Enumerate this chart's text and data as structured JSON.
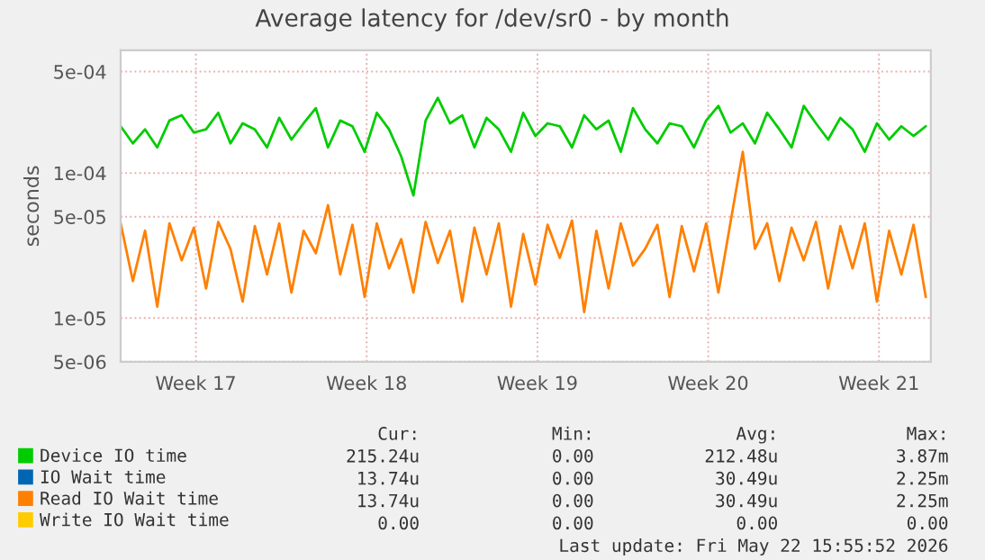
{
  "chart_data": {
    "type": "line",
    "title": "Average latency for /dev/sr0 - by month",
    "ylabel": "seconds",
    "x": [
      "2026-04-19T12:00",
      "2026-04-20T00:00",
      "2026-04-20T12:00",
      "2026-04-21T00:00",
      "2026-04-21T12:00",
      "2026-04-22T00:00",
      "2026-04-22T12:00",
      "2026-04-23T00:00",
      "2026-04-23T12:00",
      "2026-04-24T00:00",
      "2026-04-24T12:00",
      "2026-04-25T00:00",
      "2026-04-25T12:00",
      "2026-04-26T00:00",
      "2026-04-26T12:00",
      "2026-04-27T00:00",
      "2026-04-27T12:00",
      "2026-04-28T00:00",
      "2026-04-28T12:00",
      "2026-04-29T00:00",
      "2026-04-29T12:00",
      "2026-04-30T00:00",
      "2026-04-30T12:00",
      "2026-05-01T00:00",
      "2026-05-01T12:00",
      "2026-05-02T00:00",
      "2026-05-02T12:00",
      "2026-05-03T00:00",
      "2026-05-03T12:00",
      "2026-05-04T00:00",
      "2026-05-04T12:00",
      "2026-05-05T00:00",
      "2026-05-05T12:00",
      "2026-05-06T00:00",
      "2026-05-06T12:00",
      "2026-05-07T00:00",
      "2026-05-07T12:00",
      "2026-05-08T00:00",
      "2026-05-08T12:00",
      "2026-05-09T00:00",
      "2026-05-09T12:00",
      "2026-05-10T00:00",
      "2026-05-10T12:00",
      "2026-05-11T00:00",
      "2026-05-11T12:00",
      "2026-05-12T00:00",
      "2026-05-12T12:00",
      "2026-05-13T00:00",
      "2026-05-13T12:00",
      "2026-05-14T00:00",
      "2026-05-14T12:00",
      "2026-05-15T00:00",
      "2026-05-15T12:00",
      "2026-05-16T00:00",
      "2026-05-16T12:00",
      "2026-05-17T00:00",
      "2026-05-17T12:00",
      "2026-05-18T00:00",
      "2026-05-18T12:00",
      "2026-05-19T00:00",
      "2026-05-19T12:00",
      "2026-05-20T00:00",
      "2026-05-20T12:00",
      "2026-05-21T00:00",
      "2026-05-21T12:00",
      "2026-05-22T00:00",
      "2026-05-22T12:00"
    ],
    "series": [
      {
        "name": "Device IO time",
        "color": "#00cc00",
        "values": [
          0.00021,
          0.00016,
          0.0002,
          0.00015,
          0.00023,
          0.00025,
          0.00019,
          0.0002,
          0.00026,
          0.00016,
          0.00022,
          0.0002,
          0.00015,
          0.00024,
          0.00017,
          0.00022,
          0.00028,
          0.00015,
          0.00023,
          0.00021,
          0.00014,
          0.00026,
          0.0002,
          0.00013,
          7e-05,
          0.00023,
          0.00033,
          0.00022,
          0.00025,
          0.00015,
          0.00024,
          0.0002,
          0.00014,
          0.00026,
          0.00018,
          0.00022,
          0.00021,
          0.00015,
          0.00025,
          0.0002,
          0.00023,
          0.00014,
          0.00028,
          0.0002,
          0.00016,
          0.00022,
          0.00021,
          0.00015,
          0.00023,
          0.00029,
          0.00019,
          0.00022,
          0.00016,
          0.00026,
          0.0002,
          0.00015,
          0.00029,
          0.00022,
          0.00017,
          0.00024,
          0.0002,
          0.00014,
          0.00022,
          0.00017,
          0.00021,
          0.00018,
          0.00021
        ]
      },
      {
        "name": "IO Wait time",
        "color": "#0066b3",
        "values": [
          null,
          null,
          null,
          null,
          null,
          null,
          null,
          null,
          null,
          null,
          null,
          null,
          null,
          null,
          null,
          null,
          null,
          null,
          null,
          null,
          null,
          null,
          null,
          null,
          null,
          null,
          null,
          null,
          null,
          null,
          null,
          null,
          null,
          null,
          null,
          null,
          null,
          null,
          null,
          null,
          null,
          null,
          null,
          null,
          null,
          null,
          null,
          null,
          null,
          null,
          null,
          null,
          null,
          null,
          null,
          null,
          null,
          null,
          null,
          null,
          null,
          null,
          null,
          null,
          null,
          null,
          null
        ]
      },
      {
        "name": "Read IO Wait time",
        "color": "#ff8000",
        "values": [
          4.5e-05,
          1.8e-05,
          4e-05,
          1.2e-05,
          4.5e-05,
          2.5e-05,
          4.2e-05,
          1.6e-05,
          4.6e-05,
          3e-05,
          1.3e-05,
          4.3e-05,
          2e-05,
          4.5e-05,
          1.5e-05,
          4e-05,
          2.8e-05,
          6e-05,
          2e-05,
          4.4e-05,
          1.4e-05,
          4.5e-05,
          2.2e-05,
          3.5e-05,
          1.5e-05,
          4.6e-05,
          2.4e-05,
          4e-05,
          1.3e-05,
          4.2e-05,
          2e-05,
          4.5e-05,
          1.2e-05,
          3.8e-05,
          1.7e-05,
          4.4e-05,
          2.6e-05,
          4.7e-05,
          1.1e-05,
          4e-05,
          1.6e-05,
          4.5e-05,
          2.3e-05,
          3e-05,
          4.4e-05,
          1.4e-05,
          4.3e-05,
          2.1e-05,
          4.5e-05,
          1.5e-05,
          4.6e-05,
          0.00014,
          3e-05,
          4.5e-05,
          1.8e-05,
          4.2e-05,
          2.5e-05,
          4.6e-05,
          1.6e-05,
          4.3e-05,
          2.2e-05,
          4.5e-05,
          1.3e-05,
          4e-05,
          2e-05,
          4.4e-05,
          1.4e-05
        ]
      },
      {
        "name": "Write IO Wait time",
        "color": "#ffcc00",
        "values": [
          null,
          null,
          null,
          null,
          null,
          null,
          null,
          null,
          null,
          null,
          null,
          null,
          null,
          null,
          null,
          null,
          null,
          null,
          null,
          null,
          null,
          null,
          null,
          null,
          null,
          null,
          null,
          null,
          null,
          null,
          null,
          null,
          null,
          null,
          null,
          null,
          null,
          null,
          null,
          null,
          null,
          null,
          null,
          null,
          null,
          null,
          null,
          null,
          null,
          null,
          null,
          null,
          null,
          null,
          null,
          null,
          null,
          null,
          null,
          null,
          null,
          null,
          null,
          null,
          null,
          null,
          null
        ]
      }
    ],
    "log": true,
    "xlim": [
      "2026-04-19T12:00",
      "2026-05-22T17:00"
    ],
    "ylim": [
      5e-06,
      0.0007
    ],
    "xticks": [
      {
        "value": "2026-04-22T14:00",
        "label": "Week 17"
      },
      {
        "value": "2026-04-29T14:00",
        "label": "Week 18"
      },
      {
        "value": "2026-05-06T14:00",
        "label": "Week 19"
      },
      {
        "value": "2026-05-13T14:00",
        "label": "Week 20"
      },
      {
        "value": "2026-05-20T14:00",
        "label": "Week 21"
      }
    ],
    "yticks": [
      {
        "value": 5e-06,
        "label": "5e-06"
      },
      {
        "value": 1e-05,
        "label": "1e-05"
      },
      {
        "value": 5e-05,
        "label": "5e-05"
      },
      {
        "value": 0.0001,
        "label": "1e-04"
      },
      {
        "value": 0.0005,
        "label": "5e-04"
      }
    ],
    "grid": true,
    "legend": "bottom",
    "annotations": [
      "Cur:",
      "Min:",
      "Avg:",
      "Max:",
      "215.24u",
      "0.00",
      "212.48u",
      "3.87m",
      "13.74u",
      "0.00",
      "30.49u",
      "2.25m",
      "13.74u",
      "0.00",
      "30.49u",
      "2.25m",
      "0.00",
      "0.00",
      "0.00",
      "0.00",
      "Last update: Fri May 22 15:55:52 2026"
    ]
  }
}
